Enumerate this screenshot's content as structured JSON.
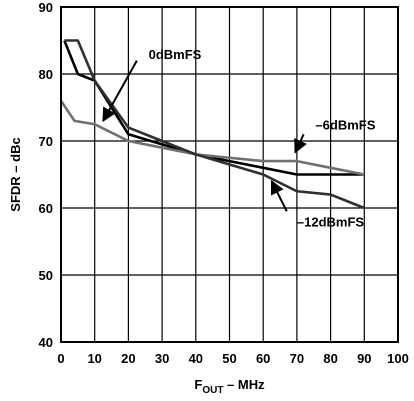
{
  "chart_data": {
    "type": "line",
    "xlabel_main": "F",
    "xlabel_sub": "OUT",
    "xlabel_rest": " – MHz",
    "ylabel": "SFDR – dBc",
    "xlim": [
      0,
      100
    ],
    "ylim": [
      40,
      90
    ],
    "xticks": [
      "0",
      "10",
      "20",
      "30",
      "40",
      "50",
      "60",
      "70",
      "80",
      "90",
      "100"
    ],
    "yticks": [
      "40",
      "50",
      "60",
      "70",
      "80",
      "90"
    ],
    "grid": true,
    "series": [
      {
        "name": "0dBmFS",
        "color": "#000000",
        "x": [
          1,
          5,
          10,
          20,
          30,
          40,
          50,
          60,
          70,
          80,
          90
        ],
        "y": [
          85,
          80,
          79,
          71,
          69.5,
          68,
          67,
          66,
          65,
          65,
          65
        ]
      },
      {
        "name": "–6dBmFS",
        "color": "#707070",
        "x": [
          0,
          4,
          10,
          20,
          30,
          40,
          50,
          60,
          70,
          80,
          90
        ],
        "y": [
          76,
          73,
          72.5,
          70,
          69,
          68,
          67.5,
          67,
          67,
          66,
          65
        ]
      },
      {
        "name": "–12dBmFS",
        "color": "#303030",
        "x": [
          1,
          5,
          10,
          20,
          30,
          40,
          50,
          60,
          70,
          80,
          90
        ],
        "y": [
          85,
          85,
          79,
          72,
          70,
          68,
          66.5,
          65,
          62.5,
          62,
          60
        ]
      }
    ],
    "annotations": [
      {
        "text": "0dBmFS",
        "series": 0,
        "label_at": [
          26,
          83
        ],
        "arrow_from": [
          22.5,
          82
        ],
        "arrow_to": [
          12.5,
          73
        ]
      },
      {
        "text": "–6dBmFS",
        "series": 1,
        "label_at": [
          75.5,
          72.5
        ],
        "arrow_from": [
          72,
          71
        ],
        "arrow_to": [
          69.5,
          68.3
        ]
      },
      {
        "text": "–12dBmFS",
        "series": 2,
        "label_at": [
          70,
          58
        ],
        "arrow_from": [
          67,
          59.5
        ],
        "arrow_to": [
          62.5,
          64
        ]
      }
    ]
  }
}
